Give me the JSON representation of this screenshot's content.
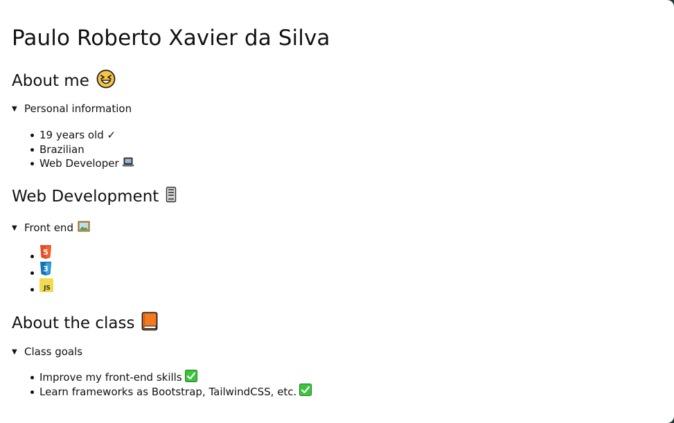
{
  "name": "Paulo Roberto Xavier da Silva",
  "about_me": {
    "heading": "About me",
    "summary": "Personal information",
    "items": [
      "19 years old ✓",
      "Brazilian",
      "Web Developer"
    ]
  },
  "web_dev": {
    "heading": "Web Development",
    "summary": "Front end",
    "logos": [
      {
        "label": "5",
        "color": "#e44d26"
      },
      {
        "label": "3",
        "color": "#1572b6"
      },
      {
        "label": "JS",
        "color": "#f0db4f"
      }
    ]
  },
  "about_class": {
    "heading": "About the class",
    "summary": "Class goals",
    "items": [
      "Improve my front-end skills",
      "Learn frameworks as Bootstrap, TailwindCSS, etc."
    ]
  },
  "icons": {
    "laughing": "laughing-face-icon",
    "laptop": "laptop-icon",
    "server": "server-icon",
    "picture": "framed-picture-icon",
    "book": "orange-book-icon",
    "check": "check-mark-button-icon"
  }
}
